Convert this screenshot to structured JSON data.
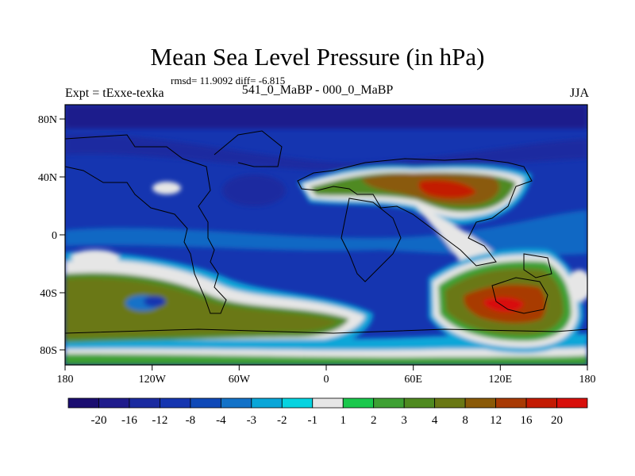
{
  "title": "Mean Sea Level Pressure (in hPa)",
  "stats": "rmsd= 11.9092 diff= -6.815",
  "expt": "Expt = tExxe-texka",
  "case": "541_0_MaBP - 000_0_MaBP",
  "season": "JJA",
  "map": {
    "lon_ticks": [
      "180",
      "120W",
      "60W",
      "0",
      "60E",
      "120E",
      "180"
    ],
    "lat_ticks": [
      "80N",
      "40N",
      "0",
      "40S",
      "80S"
    ],
    "projection": "cylindrical-equidistant",
    "extent": {
      "lon": [
        -180,
        180
      ],
      "lat": [
        -90,
        90
      ]
    }
  },
  "colorbar": {
    "labels": [
      "-20",
      "-16",
      "-12",
      "-8",
      "-4",
      "-3",
      "-2",
      "-1",
      "1",
      "2",
      "3",
      "4",
      "8",
      "12",
      "16",
      "20"
    ],
    "colors": [
      "#1a0d70",
      "#1f1b8c",
      "#1a2aa0",
      "#1535b0",
      "#0f49b8",
      "#1272c8",
      "#09a6d8",
      "#06d3e0",
      "#e6e6e6",
      "#1ac84c",
      "#3ea033",
      "#4f8a20",
      "#6a7814",
      "#8a5a08",
      "#a83a04",
      "#c31a02",
      "#d80f0b"
    ]
  }
}
